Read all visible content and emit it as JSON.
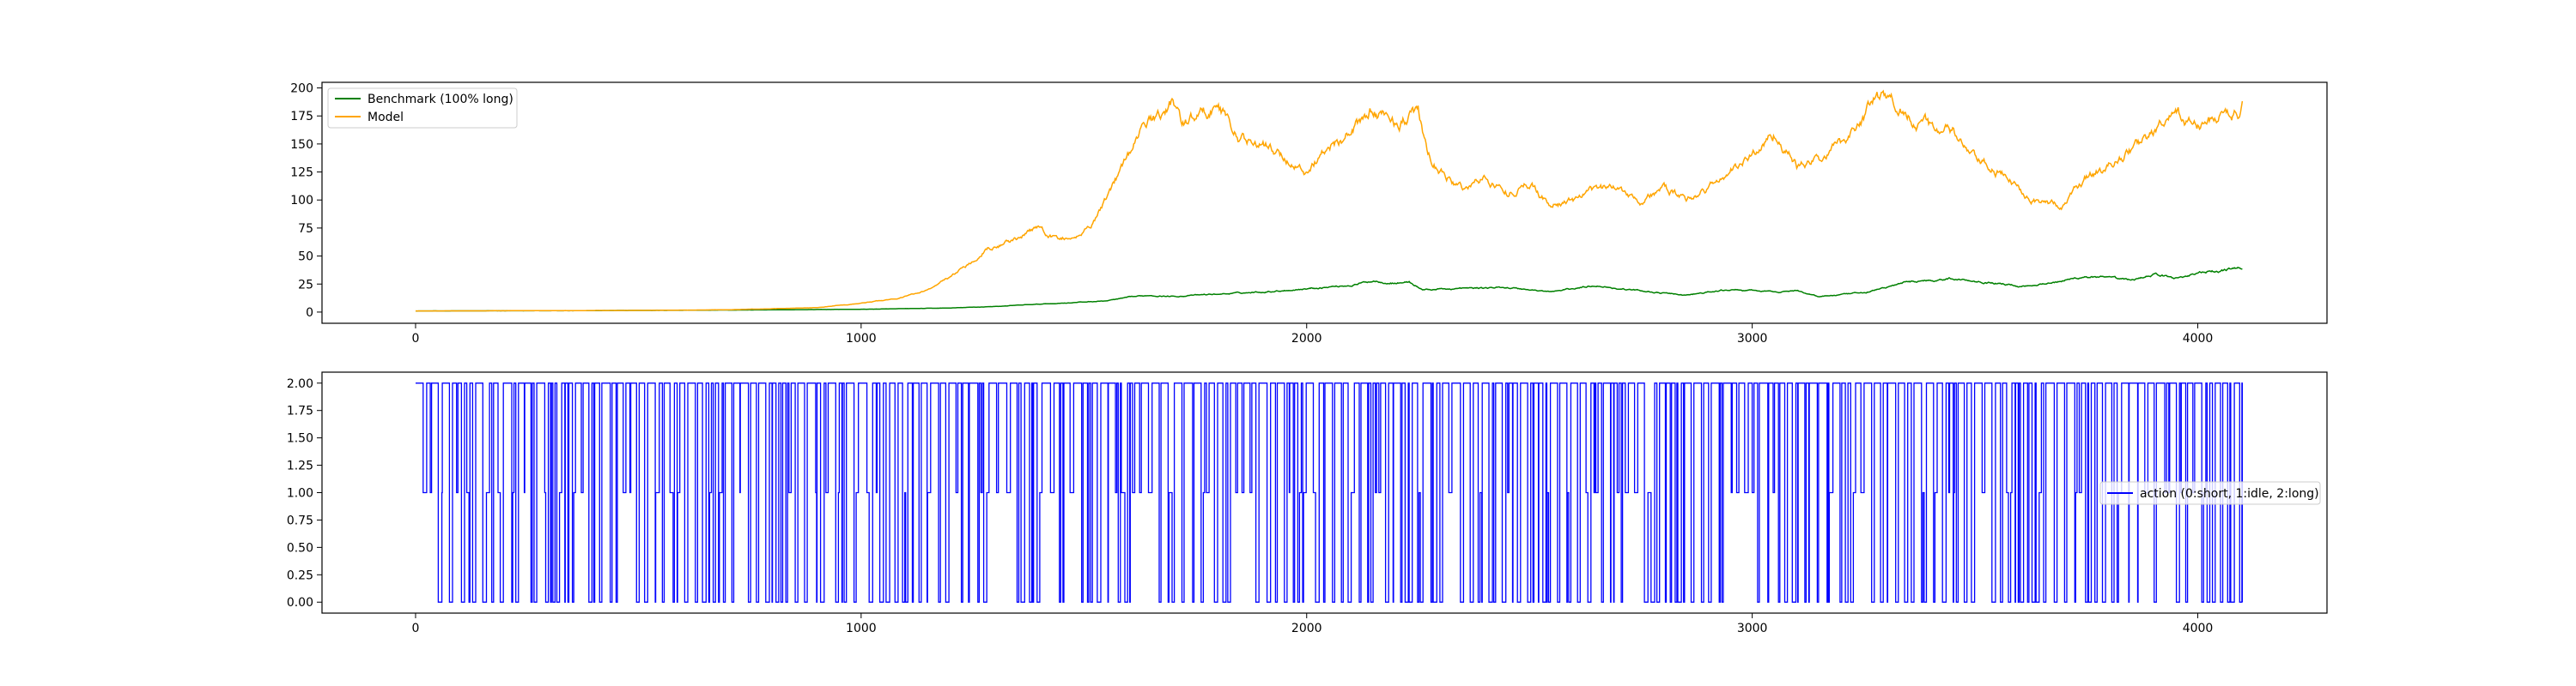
{
  "chart_data": [
    {
      "type": "line",
      "title": "",
      "xlabel": "",
      "ylabel": "",
      "xlim": [
        -210,
        4290
      ],
      "ylim": [
        -10,
        205
      ],
      "xticks": [
        0,
        1000,
        2000,
        3000,
        4000
      ],
      "yticks": [
        0,
        25,
        50,
        75,
        100,
        125,
        150,
        175,
        200
      ],
      "grid": false,
      "legend": "upper-left",
      "series": [
        {
          "name": "Benchmark (100% long)",
          "color": "#008000",
          "anchors": [
            [
              0,
              1
            ],
            [
              300,
              1.2
            ],
            [
              600,
              1.6
            ],
            [
              800,
              2
            ],
            [
              1000,
              2.5
            ],
            [
              1100,
              3
            ],
            [
              1200,
              3.6
            ],
            [
              1300,
              5
            ],
            [
              1400,
              7
            ],
            [
              1500,
              9
            ],
            [
              1550,
              10
            ],
            [
              1600,
              13
            ],
            [
              1650,
              15
            ],
            [
              1700,
              14
            ],
            [
              1800,
              16
            ],
            [
              1900,
              18
            ],
            [
              2000,
              21
            ],
            [
              2100,
              24
            ],
            [
              2150,
              28
            ],
            [
              2200,
              26
            ],
            [
              2230,
              27
            ],
            [
              2260,
              20
            ],
            [
              2350,
              21
            ],
            [
              2450,
              22
            ],
            [
              2550,
              18
            ],
            [
              2650,
              24
            ],
            [
              2700,
              21
            ],
            [
              2850,
              15
            ],
            [
              2950,
              20
            ],
            [
              3050,
              18
            ],
            [
              3100,
              19
            ],
            [
              3150,
              14
            ],
            [
              3250,
              17
            ],
            [
              3300,
              22
            ],
            [
              3350,
              27
            ],
            [
              3450,
              30
            ],
            [
              3550,
              26
            ],
            [
              3600,
              23
            ],
            [
              3700,
              28
            ],
            [
              3750,
              32
            ],
            [
              3850,
              28
            ],
            [
              3900,
              34
            ],
            [
              3950,
              30
            ],
            [
              4000,
              35
            ],
            [
              4050,
              36
            ],
            [
              4090,
              40
            ],
            [
              4100,
              38
            ]
          ]
        },
        {
          "name": "Model",
          "color": "#FFA500",
          "anchors": [
            [
              0,
              1
            ],
            [
              500,
              1.5
            ],
            [
              700,
              2
            ],
            [
              900,
              4
            ],
            [
              1000,
              8
            ],
            [
              1080,
              12
            ],
            [
              1150,
              20
            ],
            [
              1200,
              32
            ],
            [
              1250,
              45
            ],
            [
              1280,
              58
            ],
            [
              1320,
              62
            ],
            [
              1350,
              65
            ],
            [
              1400,
              75
            ],
            [
              1430,
              67
            ],
            [
              1480,
              65
            ],
            [
              1520,
              80
            ],
            [
              1560,
              110
            ],
            [
              1600,
              140
            ],
            [
              1640,
              168
            ],
            [
              1680,
              178
            ],
            [
              1700,
              188
            ],
            [
              1720,
              170
            ],
            [
              1760,
              175
            ],
            [
              1800,
              185
            ],
            [
              1850,
              155
            ],
            [
              1900,
              150
            ],
            [
              1950,
              138
            ],
            [
              2000,
              125
            ],
            [
              2050,
              150
            ],
            [
              2100,
              160
            ],
            [
              2150,
              180
            ],
            [
              2200,
              170
            ],
            [
              2230,
              175
            ],
            [
              2250,
              178
            ],
            [
              2270,
              140
            ],
            [
              2300,
              125
            ],
            [
              2350,
              110
            ],
            [
              2400,
              120
            ],
            [
              2450,
              108
            ],
            [
              2500,
              115
            ],
            [
              2550,
              95
            ],
            [
              2600,
              100
            ],
            [
              2650,
              108
            ],
            [
              2700,
              112
            ],
            [
              2750,
              100
            ],
            [
              2800,
              110
            ],
            [
              2850,
              100
            ],
            [
              2900,
              110
            ],
            [
              2950,
              125
            ],
            [
              3000,
              140
            ],
            [
              3050,
              160
            ],
            [
              3100,
              130
            ],
            [
              3150,
              135
            ],
            [
              3200,
              150
            ],
            [
              3250,
              175
            ],
            [
              3280,
              192
            ],
            [
              3320,
              185
            ],
            [
              3350,
              178
            ],
            [
              3400,
              165
            ],
            [
              3450,
              160
            ],
            [
              3500,
              135
            ],
            [
              3550,
              125
            ],
            [
              3600,
              110
            ],
            [
              3650,
              98
            ],
            [
              3700,
              95
            ],
            [
              3750,
              120
            ],
            [
              3800,
              130
            ],
            [
              3850,
              145
            ],
            [
              3900,
              160
            ],
            [
              3950,
              175
            ],
            [
              4000,
              165
            ],
            [
              4050,
              175
            ],
            [
              4090,
              178
            ],
            [
              4100,
              185
            ]
          ]
        }
      ]
    },
    {
      "type": "line",
      "title": "",
      "xlabel": "",
      "ylabel": "",
      "xlim": [
        -210,
        4290
      ],
      "ylim": [
        -0.1,
        2.1
      ],
      "xticks": [
        0,
        1000,
        2000,
        3000,
        4000
      ],
      "yticks": [
        0.0,
        0.25,
        0.5,
        0.75,
        1.0,
        1.25,
        1.5,
        1.75,
        2.0
      ],
      "yticklabels": [
        "0.00",
        "0.25",
        "0.50",
        "0.75",
        "1.00",
        "1.25",
        "1.50",
        "1.75",
        "2.00"
      ],
      "grid": false,
      "legend": "center-right",
      "series": [
        {
          "name": "action (0:short, 1:idle, 2:long)",
          "color": "#0000FF",
          "step": true,
          "x_range": [
            0,
            4100
          ],
          "values_domain": [
            0,
            1,
            2
          ]
        }
      ]
    }
  ]
}
